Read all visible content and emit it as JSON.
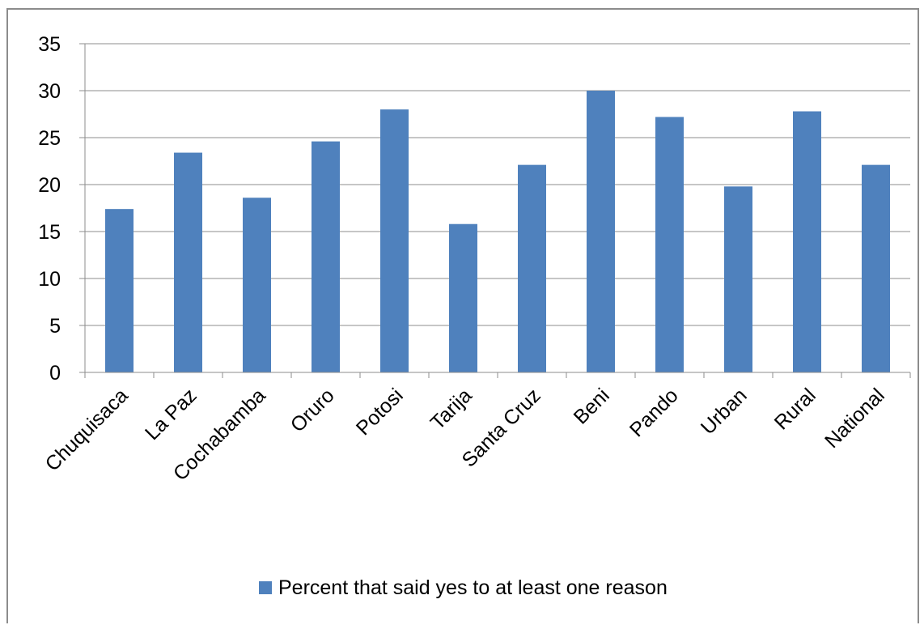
{
  "chart_data": {
    "type": "bar",
    "categories": [
      "Chuquisaca",
      "La Paz",
      "Cochabamba",
      "Oruro",
      "Potosi",
      "Tarija",
      "Santa Cruz",
      "Beni",
      "Pando",
      "Urban",
      "Rural",
      "National"
    ],
    "series": [
      {
        "name": "Percent that said yes to at least one reason",
        "values": [
          17.4,
          23.4,
          18.6,
          24.6,
          28.0,
          15.8,
          22.1,
          30.0,
          27.2,
          19.8,
          27.8,
          22.1
        ],
        "color": "#4f81bd"
      }
    ],
    "title": "",
    "xlabel": "",
    "ylabel": "",
    "ylim": [
      0,
      35
    ],
    "yticks": [
      "0",
      "5",
      "10",
      "15",
      "20",
      "25",
      "30",
      "35"
    ],
    "grid": true,
    "legend_position": "bottom"
  }
}
